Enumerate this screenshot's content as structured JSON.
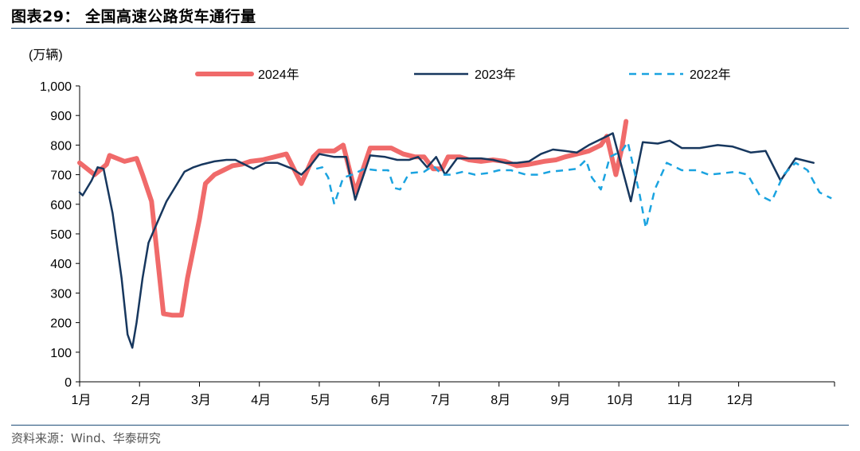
{
  "title": "图表29：  全国高速公路货车通行量",
  "source": "资料来源：Wind、华泰研究",
  "chart_data": {
    "type": "line",
    "ylabel": "(万辆)",
    "ylim": [
      0,
      1000
    ],
    "yticks": [
      0,
      100,
      200,
      300,
      400,
      500,
      600,
      700,
      800,
      900,
      1000
    ],
    "ytick_labels": [
      "0",
      "100",
      "200",
      "300",
      "400",
      "500",
      "600",
      "700",
      "800",
      "900",
      "1,000"
    ],
    "xlim": [
      0,
      12.6
    ],
    "x_unit": "month index (0 = start of 1月)",
    "month_labels": [
      "1月",
      "2月",
      "3月",
      "4月",
      "5月",
      "6月",
      "7月",
      "8月",
      "9月",
      "10月",
      "11月",
      "12月"
    ],
    "legend_position": "top",
    "series": [
      {
        "name": "2024年",
        "color": "#f06a6a",
        "dash": "solid",
        "points": [
          [
            0,
            740
          ],
          [
            0.25,
            700
          ],
          [
            0.45,
            735
          ],
          [
            0.5,
            765
          ],
          [
            0.75,
            745
          ],
          [
            0.95,
            755
          ],
          [
            1.05,
            700
          ],
          [
            1.2,
            610
          ],
          [
            1.4,
            230
          ],
          [
            1.55,
            225
          ],
          [
            1.7,
            225
          ],
          [
            1.8,
            350
          ],
          [
            2.0,
            550
          ],
          [
            2.1,
            670
          ],
          [
            2.25,
            700
          ],
          [
            2.4,
            715
          ],
          [
            2.55,
            730
          ],
          [
            2.7,
            735
          ],
          [
            2.85,
            745
          ],
          [
            3.05,
            750
          ],
          [
            3.25,
            760
          ],
          [
            3.45,
            770
          ],
          [
            3.7,
            670
          ],
          [
            3.9,
            760
          ],
          [
            4.0,
            780
          ],
          [
            4.25,
            780
          ],
          [
            4.4,
            800
          ],
          [
            4.6,
            640
          ],
          [
            4.7,
            700
          ],
          [
            4.85,
            790
          ],
          [
            5.0,
            790
          ],
          [
            5.2,
            790
          ],
          [
            5.4,
            770
          ],
          [
            5.6,
            760
          ],
          [
            5.75,
            760
          ],
          [
            5.9,
            720
          ],
          [
            6.05,
            720
          ],
          [
            6.15,
            760
          ],
          [
            6.35,
            760
          ],
          [
            6.5,
            750
          ],
          [
            6.7,
            745
          ],
          [
            6.9,
            750
          ],
          [
            7.1,
            745
          ],
          [
            7.3,
            730
          ],
          [
            7.5,
            735
          ],
          [
            7.75,
            745
          ],
          [
            7.95,
            750
          ],
          [
            8.1,
            760
          ],
          [
            8.3,
            770
          ],
          [
            8.5,
            780
          ],
          [
            8.7,
            800
          ],
          [
            8.8,
            830
          ],
          [
            8.95,
            700
          ],
          [
            9.05,
            790
          ],
          [
            9.12,
            880
          ]
        ]
      },
      {
        "name": "2023年",
        "color": "#17375e",
        "dash": "solid",
        "points": [
          [
            0,
            640
          ],
          [
            0.05,
            630
          ],
          [
            0.2,
            680
          ],
          [
            0.3,
            725
          ],
          [
            0.4,
            720
          ],
          [
            0.55,
            570
          ],
          [
            0.7,
            350
          ],
          [
            0.8,
            160
          ],
          [
            0.88,
            115
          ],
          [
            0.95,
            200
          ],
          [
            1.05,
            350
          ],
          [
            1.15,
            470
          ],
          [
            1.3,
            540
          ],
          [
            1.45,
            610
          ],
          [
            1.6,
            660
          ],
          [
            1.75,
            710
          ],
          [
            1.9,
            725
          ],
          [
            2.05,
            735
          ],
          [
            2.25,
            745
          ],
          [
            2.45,
            750
          ],
          [
            2.6,
            750
          ],
          [
            2.75,
            735
          ],
          [
            2.9,
            720
          ],
          [
            3.1,
            740
          ],
          [
            3.3,
            740
          ],
          [
            3.55,
            720
          ],
          [
            3.7,
            700
          ],
          [
            3.85,
            730
          ],
          [
            4.0,
            770
          ],
          [
            4.25,
            760
          ],
          [
            4.45,
            760
          ],
          [
            4.6,
            615
          ],
          [
            4.75,
            705
          ],
          [
            4.85,
            765
          ],
          [
            5.1,
            760
          ],
          [
            5.3,
            750
          ],
          [
            5.5,
            750
          ],
          [
            5.65,
            760
          ],
          [
            5.8,
            725
          ],
          [
            5.95,
            760
          ],
          [
            6.1,
            700
          ],
          [
            6.3,
            755
          ],
          [
            6.5,
            755
          ],
          [
            6.7,
            755
          ],
          [
            6.9,
            750
          ],
          [
            7.1,
            740
          ],
          [
            7.3,
            740
          ],
          [
            7.5,
            745
          ],
          [
            7.7,
            770
          ],
          [
            7.9,
            785
          ],
          [
            8.1,
            780
          ],
          [
            8.3,
            775
          ],
          [
            8.5,
            800
          ],
          [
            8.7,
            820
          ],
          [
            8.9,
            840
          ],
          [
            9.2,
            610
          ],
          [
            9.4,
            810
          ],
          [
            9.65,
            805
          ],
          [
            9.85,
            815
          ],
          [
            10.05,
            790
          ],
          [
            10.35,
            790
          ],
          [
            10.65,
            800
          ],
          [
            10.9,
            795
          ],
          [
            11.2,
            775
          ],
          [
            11.45,
            780
          ],
          [
            11.7,
            680
          ],
          [
            11.95,
            755
          ],
          [
            12.25,
            740
          ]
        ]
      },
      {
        "name": "2022年",
        "color": "#1aa3e0",
        "dash": "dashed",
        "points": [
          [
            3.95,
            720
          ],
          [
            4.05,
            725
          ],
          [
            4.15,
            690
          ],
          [
            4.25,
            600
          ],
          [
            4.4,
            690
          ],
          [
            4.55,
            700
          ],
          [
            4.75,
            720
          ],
          [
            4.95,
            715
          ],
          [
            5.15,
            715
          ],
          [
            5.25,
            655
          ],
          [
            5.35,
            650
          ],
          [
            5.5,
            705
          ],
          [
            5.75,
            710
          ],
          [
            5.9,
            730
          ],
          [
            6.05,
            700
          ],
          [
            6.2,
            700
          ],
          [
            6.4,
            710
          ],
          [
            6.6,
            700
          ],
          [
            6.8,
            705
          ],
          [
            7.0,
            715
          ],
          [
            7.2,
            715
          ],
          [
            7.45,
            700
          ],
          [
            7.65,
            700
          ],
          [
            7.85,
            710
          ],
          [
            8.1,
            715
          ],
          [
            8.3,
            720
          ],
          [
            8.45,
            750
          ],
          [
            8.55,
            690
          ],
          [
            8.7,
            650
          ],
          [
            8.85,
            760
          ],
          [
            9.05,
            780
          ],
          [
            9.15,
            810
          ],
          [
            9.35,
            630
          ],
          [
            9.45,
            520
          ],
          [
            9.6,
            650
          ],
          [
            9.8,
            740
          ],
          [
            10.05,
            715
          ],
          [
            10.3,
            715
          ],
          [
            10.5,
            700
          ],
          [
            10.75,
            705
          ],
          [
            10.95,
            710
          ],
          [
            11.15,
            700
          ],
          [
            11.35,
            630
          ],
          [
            11.55,
            610
          ],
          [
            11.75,
            700
          ],
          [
            11.95,
            740
          ],
          [
            12.15,
            715
          ],
          [
            12.35,
            640
          ],
          [
            12.55,
            620
          ]
        ]
      }
    ]
  }
}
